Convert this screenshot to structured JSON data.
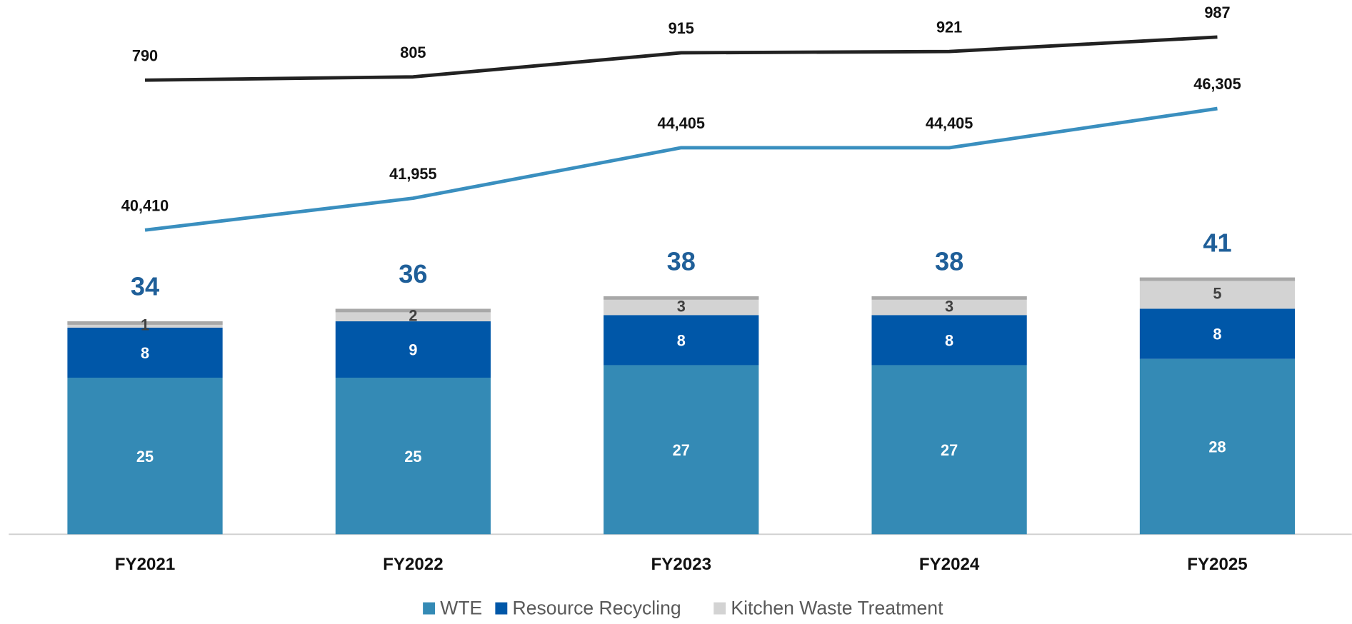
{
  "chart_data": {
    "type": "bar",
    "stacked": true,
    "categories": [
      "FY2021",
      "FY2022",
      "FY2023",
      "FY2024",
      "FY2025"
    ],
    "series": [
      {
        "name": "WTE",
        "color": "#348ab5",
        "values": [
          25,
          25,
          27,
          27,
          28
        ]
      },
      {
        "name": "Resource Recycling",
        "color": "#0057a8",
        "values": [
          8,
          9,
          8,
          8,
          8
        ]
      },
      {
        "name": "Kitchen Waste Treatment",
        "color": "#d3d3d3",
        "values": [
          1,
          2,
          3,
          3,
          5
        ]
      }
    ],
    "totals": [
      34,
      36,
      38,
      38,
      41
    ],
    "totals_color": "#1f5f99",
    "lines": [
      {
        "type": "line",
        "color": "#222222",
        "values": [
          790,
          805,
          915,
          921,
          987
        ]
      },
      {
        "type": "line",
        "color": "#3a8fbf",
        "values": [
          40410,
          41955,
          44405,
          44405,
          46305
        ],
        "value_labels": [
          "40,410",
          "41,955",
          "44,405",
          "44,405",
          "46,305"
        ]
      }
    ],
    "legend": "bottom"
  }
}
